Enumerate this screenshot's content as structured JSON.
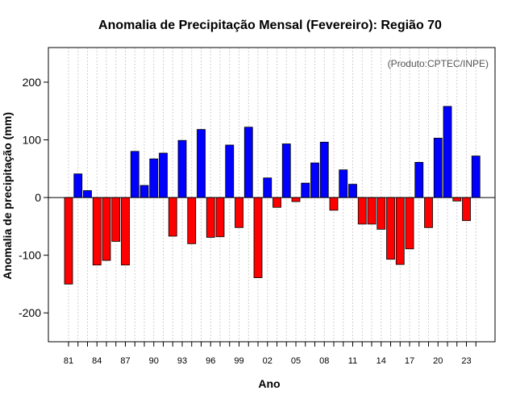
{
  "chart_data": {
    "type": "bar",
    "title": "Anomalia de Precipitação Mensal (Fevereiro): Região 70",
    "xlabel": "Ano",
    "ylabel": "Anomalia de precipitação (mm)",
    "annotation": "(Produto:CPTEC/INPE)",
    "ylim": [
      -250,
      260
    ],
    "yticks": [
      -200,
      -100,
      0,
      100,
      200
    ],
    "grid": true,
    "colors": {
      "positive": "#0000ff",
      "negative": "#ff0000",
      "outline": "#000000",
      "grid": "#cfcfcf"
    },
    "categories": [
      "1981",
      "1982",
      "1983",
      "1984",
      "1985",
      "1986",
      "1987",
      "1988",
      "1989",
      "1990",
      "1991",
      "1992",
      "1993",
      "1994",
      "1995",
      "1996",
      "1997",
      "1998",
      "1999",
      "2000",
      "2001",
      "2002",
      "2003",
      "2004",
      "2005",
      "2006",
      "2007",
      "2008",
      "2009",
      "2010",
      "2011",
      "2012",
      "2013",
      "2014",
      "2015",
      "2016",
      "2017",
      "2018",
      "2019",
      "2020",
      "2021",
      "2022",
      "2023",
      "2024"
    ],
    "xtick_labels": [
      {
        "index": 0,
        "label": "81"
      },
      {
        "index": 3,
        "label": "84"
      },
      {
        "index": 6,
        "label": "87"
      },
      {
        "index": 9,
        "label": "90"
      },
      {
        "index": 12,
        "label": "93"
      },
      {
        "index": 15,
        "label": "96"
      },
      {
        "index": 18,
        "label": "99"
      },
      {
        "index": 21,
        "label": "02"
      },
      {
        "index": 24,
        "label": "05"
      },
      {
        "index": 27,
        "label": "08"
      },
      {
        "index": 30,
        "label": "11"
      },
      {
        "index": 33,
        "label": "14"
      },
      {
        "index": 36,
        "label": "17"
      },
      {
        "index": 39,
        "label": "20"
      },
      {
        "index": 42,
        "label": "23"
      }
    ],
    "values": [
      -150,
      41,
      12,
      -117,
      -109,
      -76,
      -117,
      80,
      21,
      67,
      77,
      -67,
      99,
      -80,
      118,
      -69,
      -68,
      91,
      -52,
      122,
      -139,
      34,
      -17,
      93,
      -7,
      25,
      60,
      96,
      -22,
      48,
      23,
      -46,
      -46,
      -55,
      -107,
      -116,
      -89,
      61,
      -52,
      103,
      158,
      -6,
      -40,
      72
    ]
  }
}
